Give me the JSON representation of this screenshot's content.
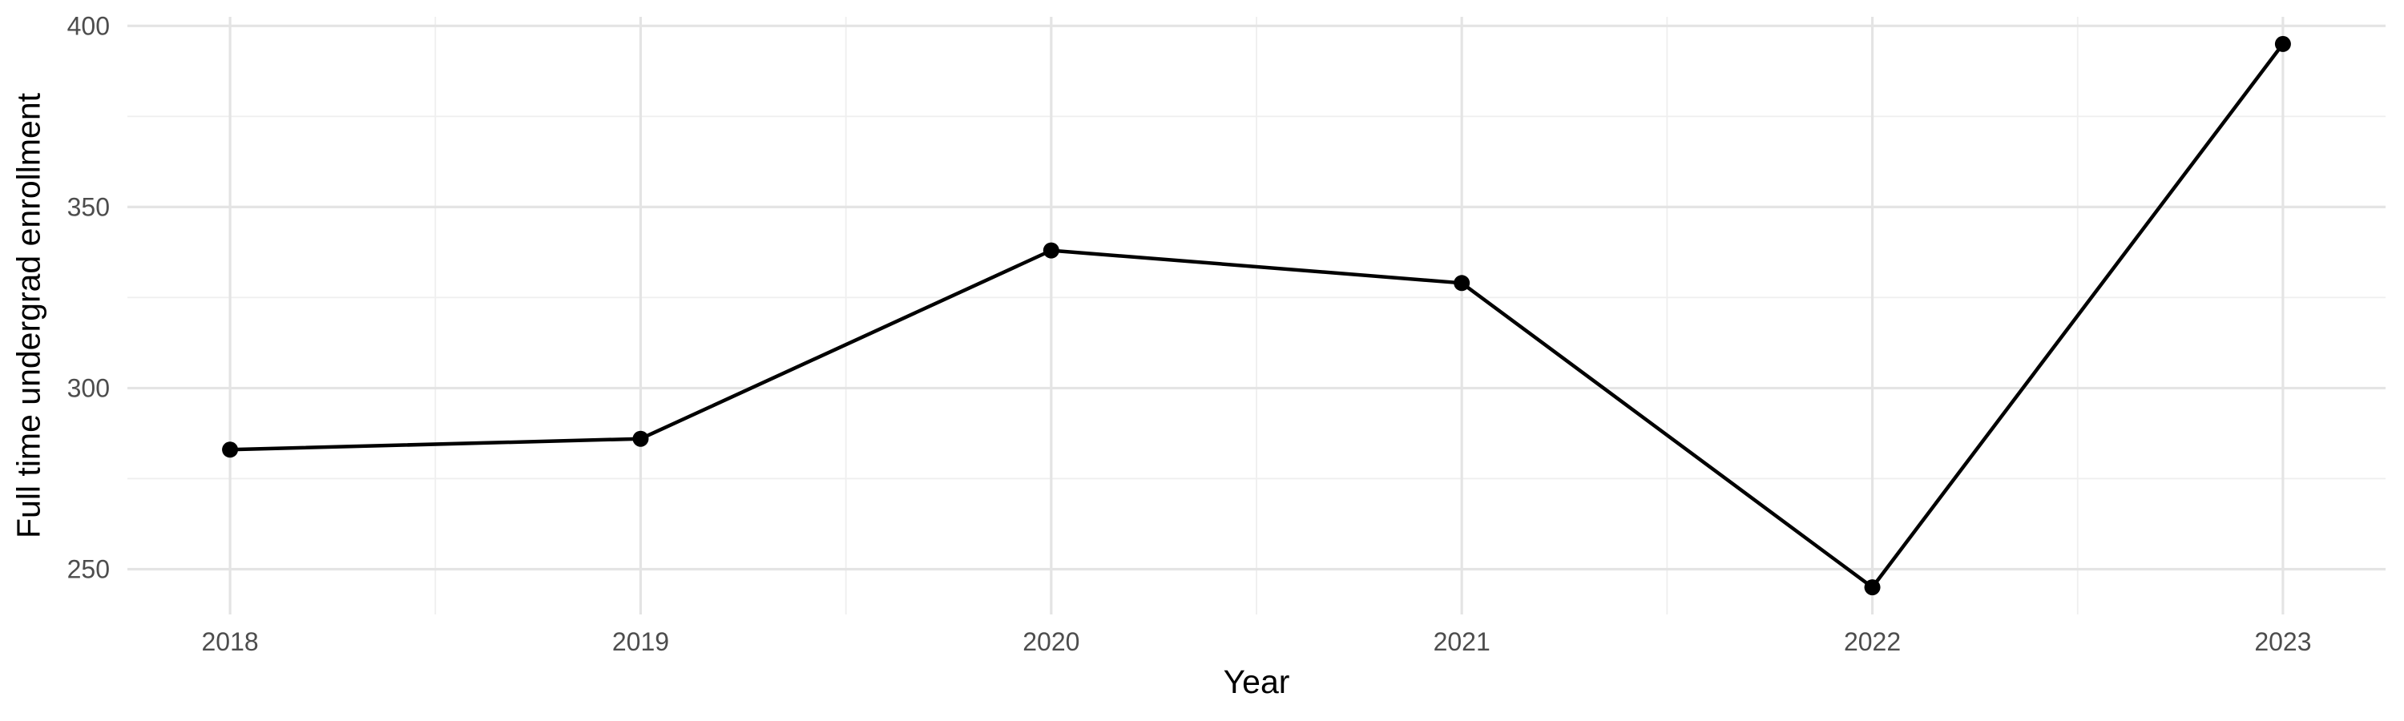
{
  "chart_data": {
    "type": "line",
    "title": "",
    "xlabel": "Year",
    "ylabel": "Full time undergrad enrollment",
    "x": [
      2018,
      2019,
      2020,
      2021,
      2022,
      2023
    ],
    "series": [
      {
        "name": "Full time undergrad enrollment",
        "values": [
          283,
          286,
          338,
          329,
          245,
          395
        ]
      }
    ],
    "x_tick_values": [
      2018,
      2019,
      2020,
      2021,
      2022,
      2023
    ],
    "x_tick_labels": [
      "2018",
      "2019",
      "2020",
      "2021",
      "2022",
      "2023"
    ],
    "y_tick_values": [
      250,
      300,
      350,
      400
    ],
    "y_tick_labels": [
      "250",
      "300",
      "350",
      "400"
    ],
    "x_minor_values": [
      2018.5,
      2019.5,
      2020.5,
      2021.5,
      2022.5
    ],
    "y_minor_values": [
      275,
      325,
      375
    ],
    "xlim": [
      2017.75,
      2023.25
    ],
    "ylim": [
      237.5,
      402.5
    ],
    "grid": "major-and-minor",
    "legend": "none",
    "marker": "filled-circle",
    "colors": {
      "line": "#000000",
      "point": "#000000",
      "grid_major": "#e4e4e4",
      "grid_minor": "#efefef",
      "tick_text": "#4d4d4d",
      "axis_title": "#000000",
      "background": "#ffffff"
    }
  }
}
